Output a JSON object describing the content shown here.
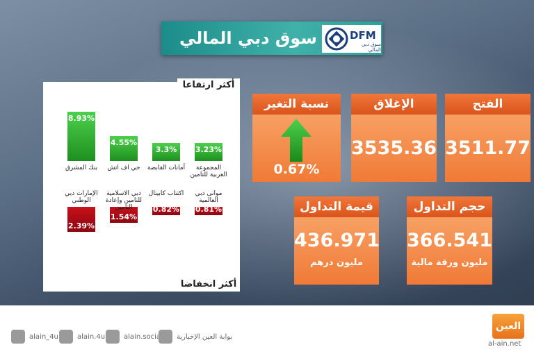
{
  "header": {
    "title": "سوق دبي المالي",
    "logo_text": "DFM",
    "logo_subtitle": "سوق دبي المالي"
  },
  "gainers": {
    "title": "أكثر ارتفاعا",
    "names": [
      "بنك المشرق",
      "جي اف اتش",
      "أمانات القابضة",
      "المجموعة العربية للتامين"
    ],
    "values": [
      8.93,
      4.55,
      3.3,
      3.23
    ],
    "value_labels": [
      "8.93%",
      "4.55%",
      "3.3%",
      "3.23%"
    ]
  },
  "losers": {
    "title": "أكثر انخفاضا",
    "names": [
      "الإمارات دبي الوطني",
      "دبي الاسلامية للتامين وإعادة التامين",
      "اكتتاب كابيتال",
      "موانى دبي العالمية"
    ],
    "values": [
      2.39,
      1.54,
      0.82,
      0.81
    ],
    "value_labels": [
      "2.39%",
      "1.54%",
      "0.82%",
      "0.81%"
    ]
  },
  "stats": {
    "change": {
      "label": "نسبة التغير",
      "value": "0.67%"
    },
    "close": {
      "label": "الإغلاق",
      "value": "3535.36"
    },
    "open": {
      "label": "الفتح",
      "value": "3511.77"
    },
    "turnover": {
      "label": "قيمة التداول",
      "value": "436.971",
      "unit": "مليون درهم"
    },
    "volume": {
      "label": "حجم التداول",
      "value": "366.541",
      "unit": "مليون ورقة مالية"
    }
  },
  "footer": {
    "social": [
      "alain_4u",
      "alain.4u",
      "alain.social",
      "بوابة العين الإخبارية"
    ],
    "logo": "العين",
    "site": "al-ain.net"
  }
}
